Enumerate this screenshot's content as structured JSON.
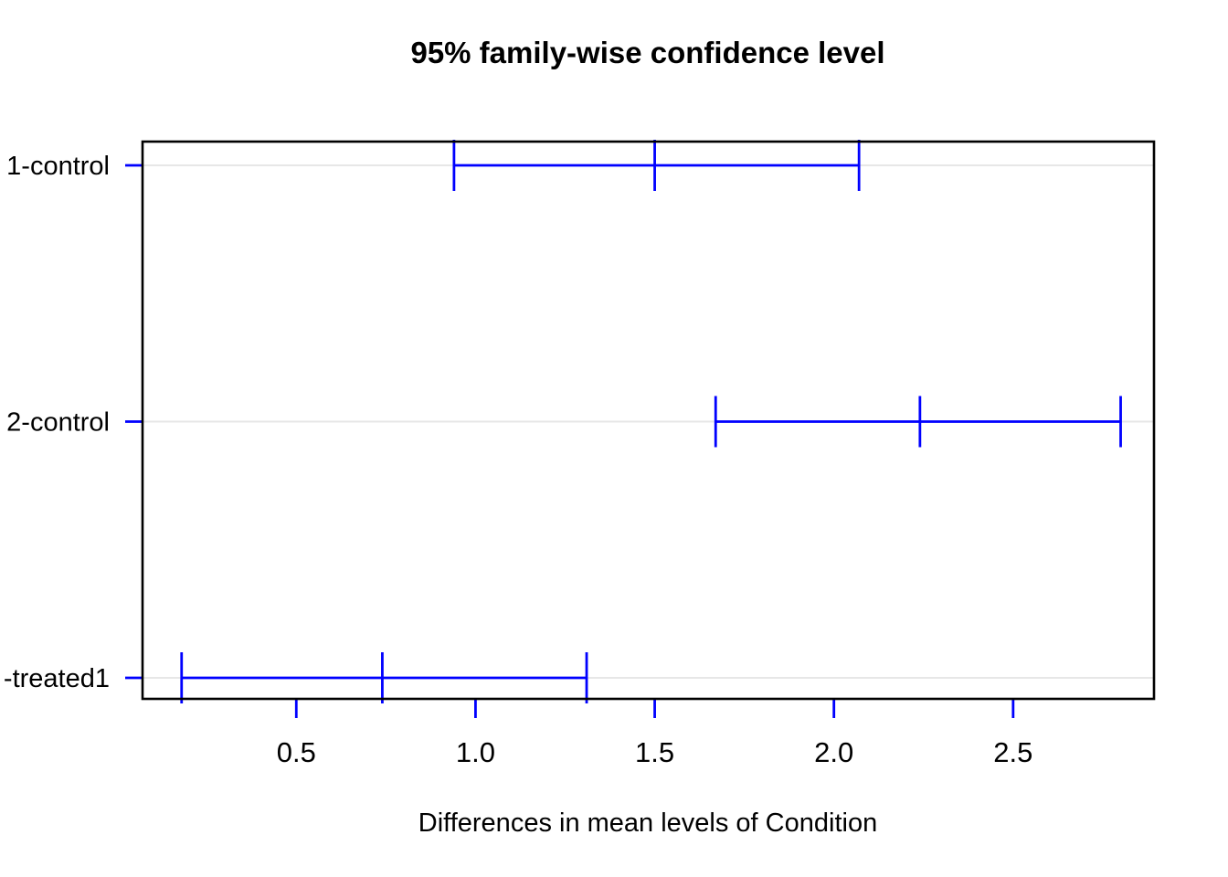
{
  "colors": {
    "background": "#ffffff",
    "interval": "#0000ff",
    "axis_tick": "#0000ff",
    "box": "#000000",
    "grid_line": "#e7e7e7",
    "text": "#000000"
  },
  "chart_data": {
    "type": "scatter",
    "subtype": "horizontal-confidence-interval-plot (R TukeyHSD style)",
    "title": "95% family-wise confidence level",
    "xlabel": "Differences in mean levels of Condition",
    "ylabel": "",
    "categories": [
      "1-control",
      "2-control",
      "-treated1"
    ],
    "series": [
      {
        "name": "1-control",
        "lower": 0.94,
        "center": 1.5,
        "upper": 2.07
      },
      {
        "name": "2-control",
        "lower": 1.67,
        "center": 2.24,
        "upper": 2.8
      },
      {
        "name": "-treated1",
        "lower": 0.18,
        "center": 0.74,
        "upper": 1.31
      }
    ],
    "xticks": [
      {
        "value": 0.5,
        "label": "0.5"
      },
      {
        "value": 1.0,
        "label": "1.0"
      },
      {
        "value": 1.5,
        "label": "1.5"
      },
      {
        "value": 2.0,
        "label": "2.0"
      },
      {
        "value": 2.5,
        "label": "2.5"
      }
    ],
    "xlim": [
      0.071,
      2.893
    ],
    "grid": "horizontal light gray line across plot at each category row",
    "legend_position": "none"
  }
}
